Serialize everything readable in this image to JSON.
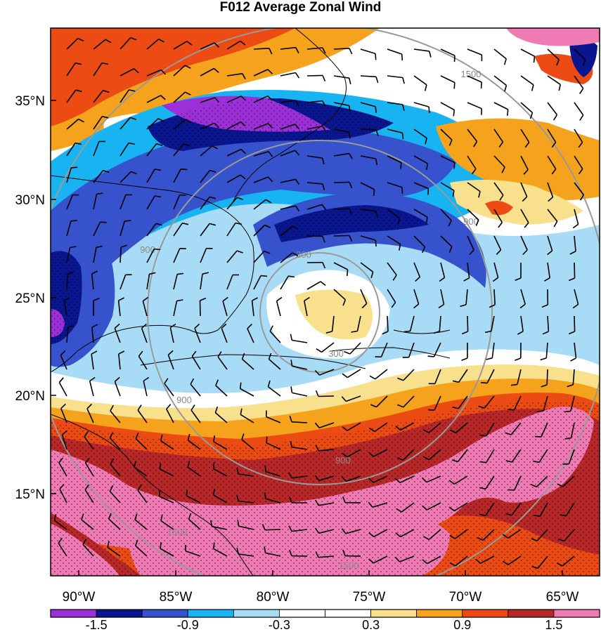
{
  "title": "F012 Average Zonal Wind",
  "lat_ticks": [
    "35°N",
    "30°N",
    "25°N",
    "20°N",
    "15°N"
  ],
  "lon_ticks": [
    "90°W",
    "85°W",
    "80°W",
    "75°W",
    "70°W",
    "65°W"
  ],
  "colorbar": {
    "labels": [
      "-1.5",
      "-0.9",
      "-0.3",
      "0.3",
      "0.9",
      "1.5"
    ],
    "colors": [
      "#9b30d8",
      "#0a1690",
      "#3652cc",
      "#18b4f2",
      "#a8dcf6",
      "#ffffff",
      "#ffffff",
      "#f8e08c",
      "#f5a31c",
      "#ec4b14",
      "#b82828",
      "#f07ab4"
    ]
  },
  "range_rings": [
    "300",
    "900",
    "1500"
  ],
  "colors": {
    "purple": "#9b30d8",
    "navy": "#0a1690",
    "royal": "#3652cc",
    "sky": "#18b4f2",
    "pale": "#a8dcf6",
    "white": "#ffffff",
    "cream": "#f8e08c",
    "orange": "#f5a31c",
    "red_orange": "#ec4b14",
    "crimson": "#b82828",
    "pink": "#f07ab4",
    "ring": "#9a9a9a"
  }
}
